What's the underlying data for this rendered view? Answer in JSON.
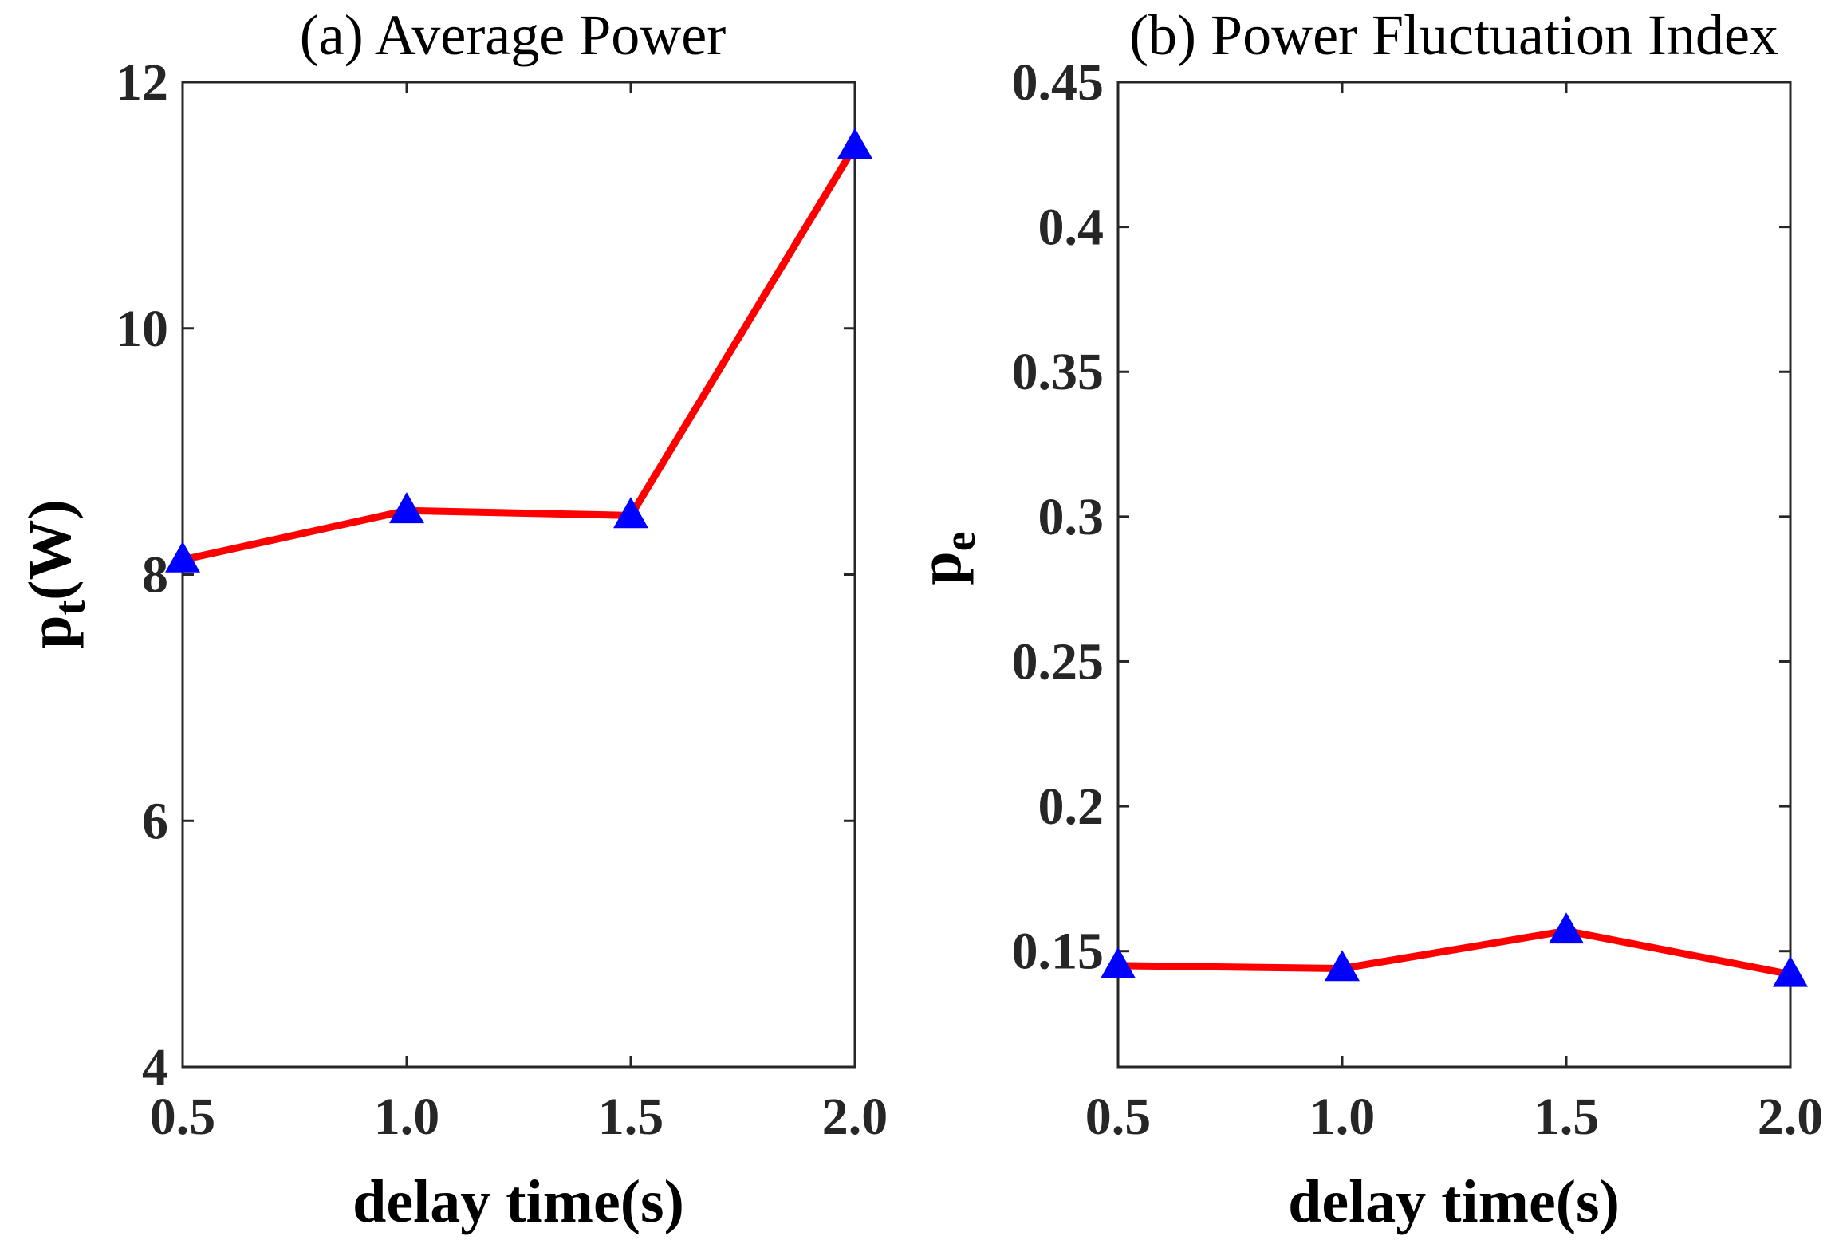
{
  "figure": {
    "background": "#ffffff",
    "axis_color": "#262626",
    "line_color": "#ff0000",
    "marker_color": "#0000ff"
  },
  "chart_data": [
    {
      "type": "line",
      "title": "(a) Average Power",
      "xlabel": "delay time(s)",
      "ylabel_main": "p",
      "ylabel_sub": "t",
      "ylabel_suffix": "(W)",
      "x": [
        0.5,
        1.0,
        1.5,
        2.0
      ],
      "x_tick_labels": [
        "0.5",
        "1.0",
        "1.5",
        "2.0"
      ],
      "series": [
        {
          "name": "average power",
          "values": [
            8.12,
            8.52,
            8.48,
            11.48
          ],
          "line_color": "#ff0000",
          "marker": "triangle",
          "marker_color": "#0000ff"
        }
      ],
      "xlim": [
        0.5,
        2.0
      ],
      "ylim": [
        4,
        12
      ],
      "y_ticks": [
        4,
        6,
        8,
        10,
        12
      ],
      "y_tick_labels": [
        "4",
        "6",
        "8",
        "10",
        "12"
      ],
      "grid": false
    },
    {
      "type": "line",
      "title": "(b) Power Fluctuation Index",
      "xlabel": "delay time(s)",
      "ylabel_main": "p",
      "ylabel_sub": "e",
      "ylabel_suffix": "",
      "x": [
        0.5,
        1.0,
        1.5,
        2.0
      ],
      "x_tick_labels": [
        "0.5",
        "1.0",
        "1.5",
        "2.0"
      ],
      "series": [
        {
          "name": "power fluctuation index",
          "values": [
            0.145,
            0.144,
            0.157,
            0.142
          ],
          "line_color": "#ff0000",
          "marker": "triangle",
          "marker_color": "#0000ff"
        }
      ],
      "xlim": [
        0.5,
        2.0
      ],
      "ylim": [
        0.11,
        0.45
      ],
      "y_ticks": [
        0.15,
        0.2,
        0.25,
        0.3,
        0.35,
        0.4,
        0.45
      ],
      "y_tick_labels": [
        "0.15",
        "0.2",
        "0.25",
        "0.3",
        "0.35",
        "0.4",
        "0.45"
      ],
      "grid": false
    }
  ]
}
